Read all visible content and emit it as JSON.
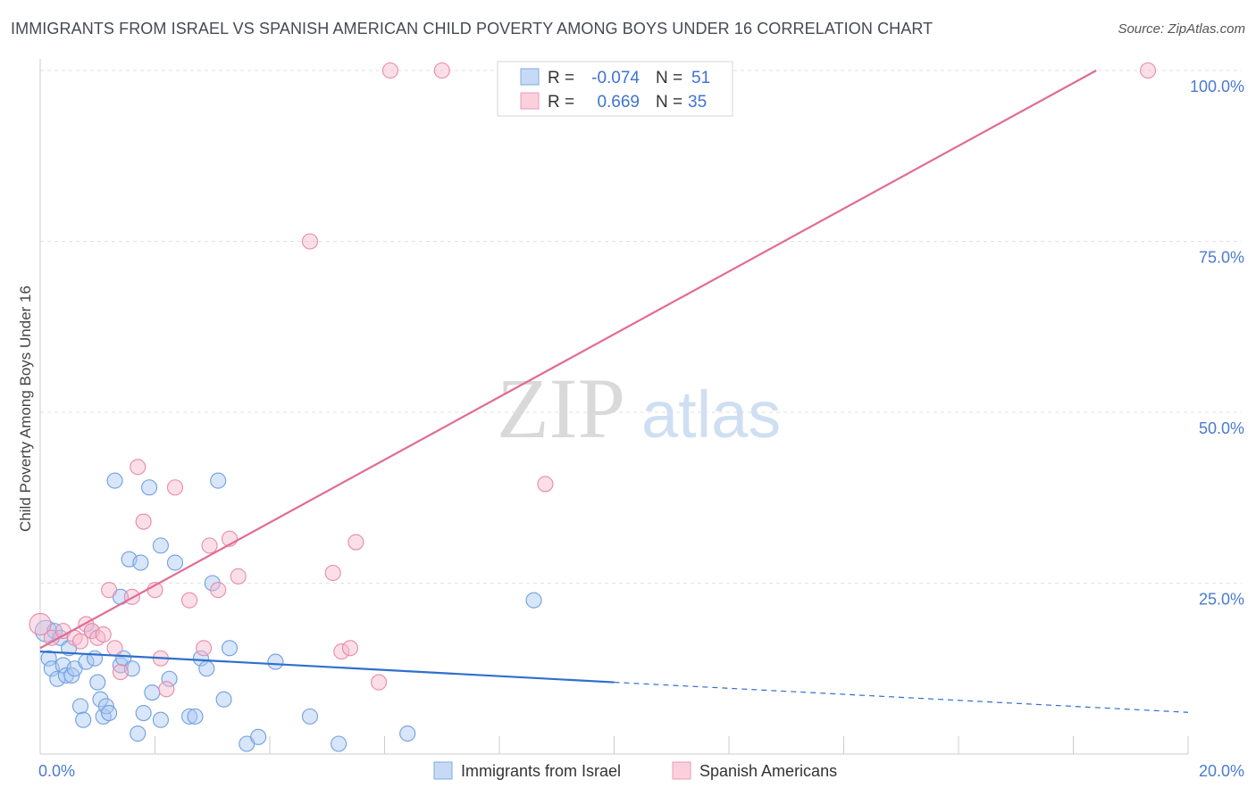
{
  "title": "IMMIGRANTS FROM ISRAEL VS SPANISH AMERICAN CHILD POVERTY AMONG BOYS UNDER 16 CORRELATION CHART",
  "source": "Source: ZipAtlas.com",
  "watermark": {
    "zip": "ZIP",
    "atlas": "atlas"
  },
  "legend": {
    "rows": [
      {
        "r_label": "R =",
        "r_value": "-0.074",
        "n_label": "N =",
        "n_value": "51",
        "color": "#a9c8f2"
      },
      {
        "r_label": "R =",
        "r_value": "0.669",
        "n_label": "N =",
        "n_value": "35",
        "color": "#f7b9cb"
      }
    ]
  },
  "chart_data": {
    "type": "scatter",
    "title": "IMMIGRANTS FROM ISRAEL VS SPANISH AMERICAN CHILD POVERTY AMONG BOYS UNDER 16 CORRELATION CHART",
    "xlabel": "",
    "ylabel": "Child Poverty Among Boys Under 16",
    "xlim": [
      0,
      20
    ],
    "ylim": [
      0,
      100
    ],
    "x_tick_labels": [
      {
        "value": 0,
        "label": "0.0%"
      },
      {
        "value": 20,
        "label": "20.0%"
      }
    ],
    "y_tick_labels": [
      {
        "value": 25,
        "label": "25.0%"
      },
      {
        "value": 50,
        "label": "50.0%"
      },
      {
        "value": 75,
        "label": "75.0%"
      },
      {
        "value": 100,
        "label": "100.0%"
      }
    ],
    "series": [
      {
        "name": "Immigrants from Israel",
        "color": "#a9c8f2",
        "stroke": "#6f9fdf",
        "trend": {
          "x0": 0,
          "y0": 15.0,
          "x1": 10.0,
          "y1": 10.5,
          "dashed_to_x": 20,
          "dashed_to_y": 6.1,
          "color": "#2f6fcd"
        },
        "points": [
          [
            0.1,
            18.0
          ],
          [
            0.15,
            14.0
          ],
          [
            0.2,
            12.5
          ],
          [
            0.25,
            18.0
          ],
          [
            0.3,
            11.0
          ],
          [
            0.35,
            17.0
          ],
          [
            0.4,
            13.0
          ],
          [
            0.45,
            11.5
          ],
          [
            0.5,
            15.5
          ],
          [
            0.55,
            11.5
          ],
          [
            0.6,
            12.5
          ],
          [
            0.7,
            7.0
          ],
          [
            0.75,
            5.0
          ],
          [
            0.8,
            13.5
          ],
          [
            0.9,
            18.0
          ],
          [
            0.95,
            14.0
          ],
          [
            1.0,
            10.5
          ],
          [
            1.05,
            8.0
          ],
          [
            1.1,
            5.5
          ],
          [
            1.15,
            7.0
          ],
          [
            1.2,
            6.0
          ],
          [
            1.3,
            40.0
          ],
          [
            1.4,
            23.0
          ],
          [
            1.4,
            13.0
          ],
          [
            1.45,
            14.0
          ],
          [
            1.55,
            28.5
          ],
          [
            1.6,
            12.5
          ],
          [
            1.7,
            3.0
          ],
          [
            1.75,
            28.0
          ],
          [
            1.8,
            6.0
          ],
          [
            1.9,
            39.0
          ],
          [
            1.95,
            9.0
          ],
          [
            2.1,
            5.0
          ],
          [
            2.1,
            30.5
          ],
          [
            2.25,
            11.0
          ],
          [
            2.35,
            28.0
          ],
          [
            2.6,
            5.5
          ],
          [
            2.7,
            5.5
          ],
          [
            2.8,
            14.0
          ],
          [
            2.9,
            12.5
          ],
          [
            3.0,
            25.0
          ],
          [
            3.1,
            40.0
          ],
          [
            3.2,
            8.0
          ],
          [
            3.3,
            15.5
          ],
          [
            3.6,
            1.5
          ],
          [
            3.8,
            2.5
          ],
          [
            4.1,
            13.5
          ],
          [
            4.7,
            5.5
          ],
          [
            5.2,
            1.5
          ],
          [
            6.4,
            3.0
          ],
          [
            8.6,
            22.5
          ]
        ]
      },
      {
        "name": "Spanish Americans",
        "color": "#f7b9cb",
        "stroke": "#e98aa7",
        "trend": {
          "x0": 0,
          "y0": 15.5,
          "x1": 18.4,
          "y1": 100.0,
          "color": "#e26b94"
        },
        "points": [
          [
            0.0,
            19.0
          ],
          [
            0.2,
            17.0
          ],
          [
            0.4,
            18.0
          ],
          [
            0.6,
            17.0
          ],
          [
            0.7,
            16.5
          ],
          [
            0.8,
            19.0
          ],
          [
            0.9,
            18.0
          ],
          [
            1.0,
            17.0
          ],
          [
            1.1,
            17.5
          ],
          [
            1.2,
            24.0
          ],
          [
            1.3,
            15.5
          ],
          [
            1.4,
            12.0
          ],
          [
            1.6,
            23.0
          ],
          [
            1.7,
            42.0
          ],
          [
            1.8,
            34.0
          ],
          [
            2.0,
            24.0
          ],
          [
            2.1,
            14.0
          ],
          [
            2.2,
            9.5
          ],
          [
            2.35,
            39.0
          ],
          [
            2.6,
            22.5
          ],
          [
            2.85,
            15.5
          ],
          [
            2.95,
            30.5
          ],
          [
            3.1,
            24.0
          ],
          [
            3.3,
            31.5
          ],
          [
            3.45,
            26.0
          ],
          [
            4.7,
            75.0
          ],
          [
            5.1,
            26.5
          ],
          [
            5.25,
            15.0
          ],
          [
            5.4,
            15.5
          ],
          [
            5.5,
            31.0
          ],
          [
            5.9,
            10.5
          ],
          [
            6.1,
            100.0
          ],
          [
            7.0,
            100.0
          ],
          [
            8.8,
            39.5
          ],
          [
            19.3,
            100.0
          ]
        ]
      }
    ]
  }
}
